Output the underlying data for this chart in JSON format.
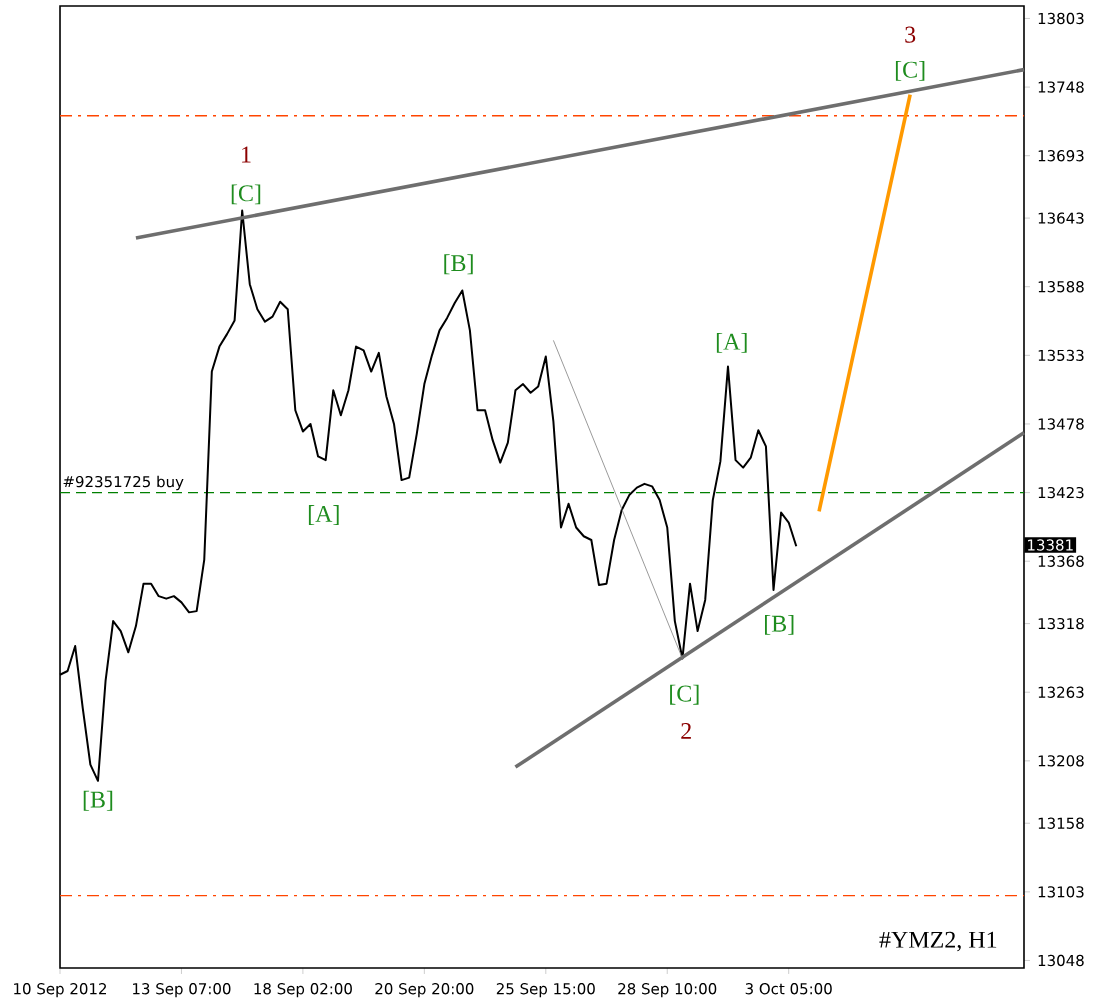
{
  "chart_data": {
    "type": "line",
    "grid": false,
    "marker": "none",
    "ylim": [
      13042,
      13813
    ],
    "yticks": [
      13803,
      13748,
      13693,
      13643,
      13588,
      13533,
      13478,
      13423,
      13368,
      13318,
      13263,
      13208,
      13158,
      13103,
      13048
    ],
    "categories": [
      "10 Sep 2012",
      null,
      null,
      null,
      null,
      null,
      null,
      null,
      null,
      null,
      null,
      null,
      null,
      null,
      null,
      null,
      "13 Sep 07:00",
      null,
      null,
      null,
      null,
      null,
      null,
      null,
      null,
      null,
      null,
      null,
      null,
      null,
      null,
      null,
      "18 Sep 02:00",
      null,
      null,
      null,
      null,
      null,
      null,
      null,
      null,
      null,
      null,
      null,
      null,
      null,
      null,
      null,
      "20 Sep 20:00",
      null,
      null,
      null,
      null,
      null,
      null,
      null,
      null,
      null,
      null,
      null,
      null,
      null,
      null,
      null,
      "25 Sep 15:00",
      null,
      null,
      null,
      null,
      null,
      null,
      null,
      null,
      null,
      null,
      null,
      null,
      null,
      null,
      null,
      "28 Sep 10:00",
      null,
      null,
      null,
      null,
      null,
      null,
      null,
      null,
      null,
      null,
      null,
      null,
      null,
      null,
      null,
      "3 Oct 05:00",
      null,
      null,
      null,
      null,
      null,
      null,
      null,
      null,
      null,
      null,
      null,
      null,
      null,
      null,
      null,
      null,
      null,
      null,
      null,
      null,
      null,
      null,
      null,
      null,
      null,
      null,
      null,
      null,
      null,
      null,
      null
    ],
    "series": [
      {
        "color": "#000000",
        "values": [
          13277,
          13280,
          13300,
          13250,
          13205,
          13192,
          13272,
          13320,
          13312,
          13295,
          13316,
          13350,
          13350,
          13340,
          13338,
          13340,
          13335,
          13327,
          13328,
          13369,
          13520,
          13540,
          13550,
          13561,
          13649,
          13590,
          13570,
          13560,
          13564,
          13576,
          13570,
          13489,
          13472,
          13478,
          13452,
          13449,
          13505,
          13485,
          13505,
          13540,
          13537,
          13520,
          13535,
          13500,
          13478,
          13433,
          13435,
          13470,
          13510,
          13533,
          13553,
          13563,
          13575,
          13585,
          13553,
          13489,
          13489,
          13465,
          13447,
          13463,
          13505,
          13510,
          13503,
          13508,
          13532,
          13480,
          13395,
          13414,
          13395,
          13388,
          13385,
          13349,
          13350,
          13385,
          13409,
          13421,
          13427,
          13430,
          13428,
          13417,
          13395,
          13320,
          13290,
          13350,
          13312,
          13337,
          13417,
          13448,
          13524,
          13449,
          13443,
          13451,
          13473,
          13460,
          13345,
          13407,
          13399,
          13380,
          null,
          null,
          null,
          null,
          null,
          null,
          null,
          null,
          null,
          null,
          null,
          null,
          null,
          null,
          null,
          null,
          null,
          null,
          null,
          null,
          null,
          null,
          null,
          null,
          null,
          null,
          null,
          null,
          null,
          null
        ]
      },
      {
        "color": "#6e6e6e",
        "values": [
          null,
          null,
          null,
          null,
          null,
          null,
          null,
          null,
          null,
          null,
          13627,
          null,
          null,
          null,
          null,
          null,
          null,
          null,
          null,
          null,
          null,
          null,
          null,
          null,
          null,
          null,
          null,
          null,
          null,
          null,
          null,
          null,
          null,
          null,
          null,
          null,
          null,
          null,
          null,
          null,
          null,
          null,
          null,
          null,
          null,
          null,
          null,
          null,
          null,
          null,
          null,
          null,
          null,
          null,
          null,
          null,
          null,
          null,
          null,
          null,
          null,
          null,
          null,
          null,
          null,
          null,
          null,
          null,
          null,
          null,
          null,
          null,
          null,
          null,
          null,
          null,
          null,
          null,
          null,
          null,
          null,
          null,
          null,
          null,
          null,
          null,
          null,
          null,
          null,
          null,
          null,
          null,
          null,
          null,
          null,
          null,
          null,
          null,
          null,
          null,
          null,
          null,
          null,
          null,
          null,
          null,
          null,
          null,
          null,
          null,
          null,
          null,
          null,
          null,
          null,
          null,
          null,
          null,
          null,
          null,
          null,
          null,
          null,
          null,
          null,
          null,
          null,
          13762
        ]
      },
      {
        "color": "#6e6e6e",
        "values": [
          null,
          null,
          null,
          null,
          null,
          null,
          null,
          null,
          null,
          null,
          null,
          null,
          null,
          null,
          null,
          null,
          null,
          null,
          null,
          null,
          null,
          null,
          null,
          null,
          null,
          null,
          null,
          null,
          null,
          null,
          null,
          null,
          null,
          null,
          null,
          null,
          null,
          null,
          null,
          null,
          null,
          null,
          null,
          null,
          null,
          null,
          null,
          null,
          null,
          null,
          null,
          null,
          null,
          null,
          null,
          null,
          null,
          null,
          null,
          null,
          13203,
          null,
          null,
          null,
          null,
          null,
          null,
          null,
          null,
          null,
          null,
          null,
          null,
          null,
          null,
          null,
          null,
          null,
          null,
          null,
          null,
          null,
          null,
          null,
          null,
          null,
          null,
          null,
          null,
          null,
          null,
          null,
          null,
          null,
          null,
          null,
          null,
          null,
          null,
          null,
          null,
          null,
          null,
          null,
          null,
          null,
          null,
          null,
          null,
          null,
          null,
          null,
          null,
          null,
          null,
          null,
          null,
          null,
          null,
          null,
          null,
          null,
          null,
          null,
          null,
          null,
          null,
          13471
        ]
      },
      {
        "color": "#808080",
        "values": [
          null,
          null,
          null,
          null,
          null,
          null,
          null,
          null,
          null,
          null,
          null,
          null,
          null,
          null,
          null,
          null,
          null,
          null,
          null,
          null,
          null,
          null,
          null,
          null,
          null,
          null,
          null,
          null,
          null,
          null,
          null,
          null,
          null,
          null,
          null,
          null,
          null,
          null,
          null,
          null,
          null,
          null,
          null,
          null,
          null,
          null,
          null,
          null,
          null,
          null,
          null,
          null,
          null,
          null,
          null,
          null,
          null,
          null,
          null,
          null,
          null,
          null,
          null,
          null,
          null,
          13545,
          null,
          null,
          null,
          null,
          null,
          null,
          null,
          null,
          null,
          null,
          null,
          null,
          null,
          null,
          null,
          null,
          13290,
          null,
          null,
          null,
          null,
          null,
          null,
          null,
          null,
          null,
          null,
          null,
          null,
          null,
          null,
          null,
          null,
          null,
          null,
          null,
          null,
          null,
          null,
          null,
          null,
          null,
          null,
          null,
          null,
          null,
          null,
          null,
          null,
          null,
          null,
          null,
          null,
          null,
          null,
          null,
          null,
          null,
          null,
          null,
          null,
          null
        ]
      },
      {
        "color": "#ff9900",
        "values": [
          null,
          null,
          null,
          null,
          null,
          null,
          null,
          null,
          null,
          null,
          null,
          null,
          null,
          null,
          null,
          null,
          null,
          null,
          null,
          null,
          null,
          null,
          null,
          null,
          null,
          null,
          null,
          null,
          null,
          null,
          null,
          null,
          null,
          null,
          null,
          null,
          null,
          null,
          null,
          null,
          null,
          null,
          null,
          null,
          null,
          null,
          null,
          null,
          null,
          null,
          null,
          null,
          null,
          null,
          null,
          null,
          null,
          null,
          null,
          null,
          null,
          null,
          null,
          null,
          null,
          null,
          null,
          null,
          null,
          null,
          null,
          null,
          null,
          null,
          null,
          null,
          null,
          null,
          null,
          null,
          null,
          null,
          null,
          null,
          null,
          null,
          null,
          null,
          null,
          null,
          null,
          null,
          null,
          null,
          null,
          null,
          null,
          null,
          null,
          null,
          13408,
          null,
          null,
          null,
          null,
          null,
          null,
          null,
          null,
          null,
          null,
          null,
          13742,
          null,
          null,
          null,
          null,
          null,
          null,
          null,
          null,
          null,
          null,
          null,
          null,
          null,
          null,
          null
        ]
      }
    ],
    "ref_lines": [
      {
        "axis": "y",
        "value": 13423,
        "label": "#92351725 buy",
        "color": "#008000",
        "line_style": "dashed"
      },
      {
        "axis": "y",
        "value": 13725,
        "color": "#ff4500",
        "line_style": "dashdot"
      },
      {
        "axis": "y",
        "value": 13100,
        "color": "#ff4500",
        "line_style": "dashdot"
      }
    ],
    "annotations": [
      "1",
      "[C]",
      "[B]",
      "[A]",
      "[B]",
      "[A]",
      "[C]",
      "2",
      "[B]",
      "3",
      "[C]",
      "13381",
      "#YMZ2, H1"
    ]
  }
}
